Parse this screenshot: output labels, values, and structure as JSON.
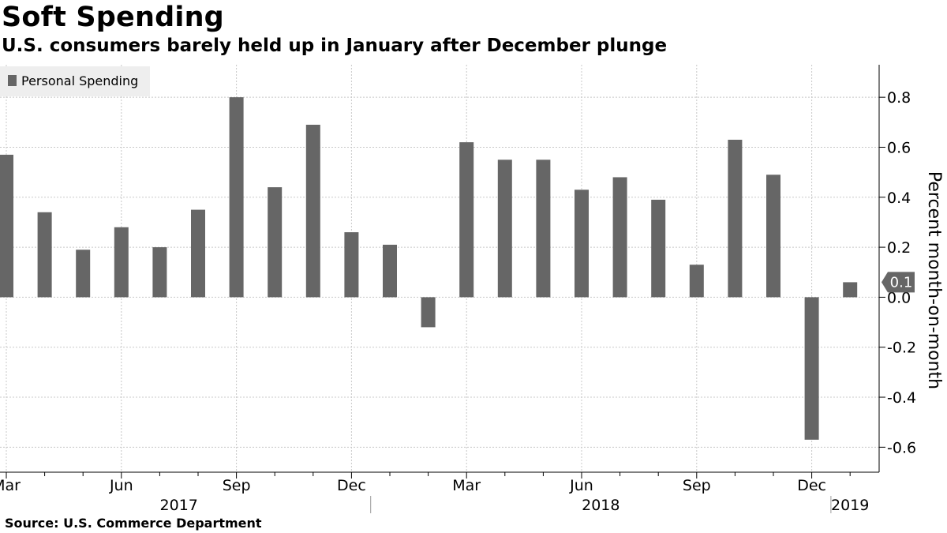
{
  "header": {
    "title": "Soft Spending",
    "subtitle": "U.S. consumers barely held up in January after December plunge"
  },
  "footer": {
    "source": "Source: U.S. Commerce Department"
  },
  "colors": {
    "bar": "#666666",
    "grid": "#c8c8c8",
    "axis": "#000000",
    "legend_bg": "#eeeeee",
    "callout_bg": "#666666"
  },
  "chart_data": {
    "type": "bar",
    "title": "Soft Spending",
    "subtitle": "U.S. consumers barely held up in January after December plunge",
    "ylabel": "Percent month-on-month",
    "xlabel": "",
    "ylim": [
      -0.7,
      0.93
    ],
    "yticks": [
      -0.6,
      -0.4,
      -0.2,
      0.0,
      0.2,
      0.4,
      0.6,
      0.8
    ],
    "ytick_labels": [
      "-0.6",
      "-0.4",
      "-0.2",
      "0.0",
      "0.2",
      "0.4",
      "0.6",
      "0.8"
    ],
    "grid": true,
    "legend_position": "top-left",
    "categories": [
      "Mar 2017",
      "Apr 2017",
      "May 2017",
      "Jun 2017",
      "Jul 2017",
      "Aug 2017",
      "Sep 2017",
      "Oct 2017",
      "Nov 2017",
      "Dec 2017",
      "Jan 2018",
      "Feb 2018",
      "Mar 2018",
      "Apr 2018",
      "May 2018",
      "Jun 2018",
      "Jul 2018",
      "Aug 2018",
      "Sep 2018",
      "Oct 2018",
      "Nov 2018",
      "Dec 2018",
      "Jan 2019"
    ],
    "month_labels": [
      "Mar",
      "",
      "",
      "Jun",
      "",
      "",
      "Sep",
      "",
      "",
      "Dec",
      "",
      "",
      "Mar",
      "",
      "",
      "Jun",
      "",
      "",
      "Sep",
      "",
      "",
      "Dec",
      ""
    ],
    "year_labels": [
      {
        "label": "2017",
        "center_index": 4.5
      },
      {
        "label": "2018",
        "center_index": 15.5
      },
      {
        "label": "2019",
        "center_index": 22
      }
    ],
    "year_separators_before_index": [
      10,
      22
    ],
    "series": [
      {
        "name": "Personal Spending",
        "values": [
          0.57,
          0.34,
          0.19,
          0.28,
          0.2,
          0.35,
          0.8,
          0.44,
          0.69,
          0.26,
          0.21,
          -0.12,
          0.62,
          0.55,
          0.55,
          0.43,
          0.48,
          0.39,
          0.13,
          0.63,
          0.49,
          -0.57,
          0.06
        ]
      }
    ],
    "callout": {
      "index": 22,
      "label": "0.1"
    }
  }
}
